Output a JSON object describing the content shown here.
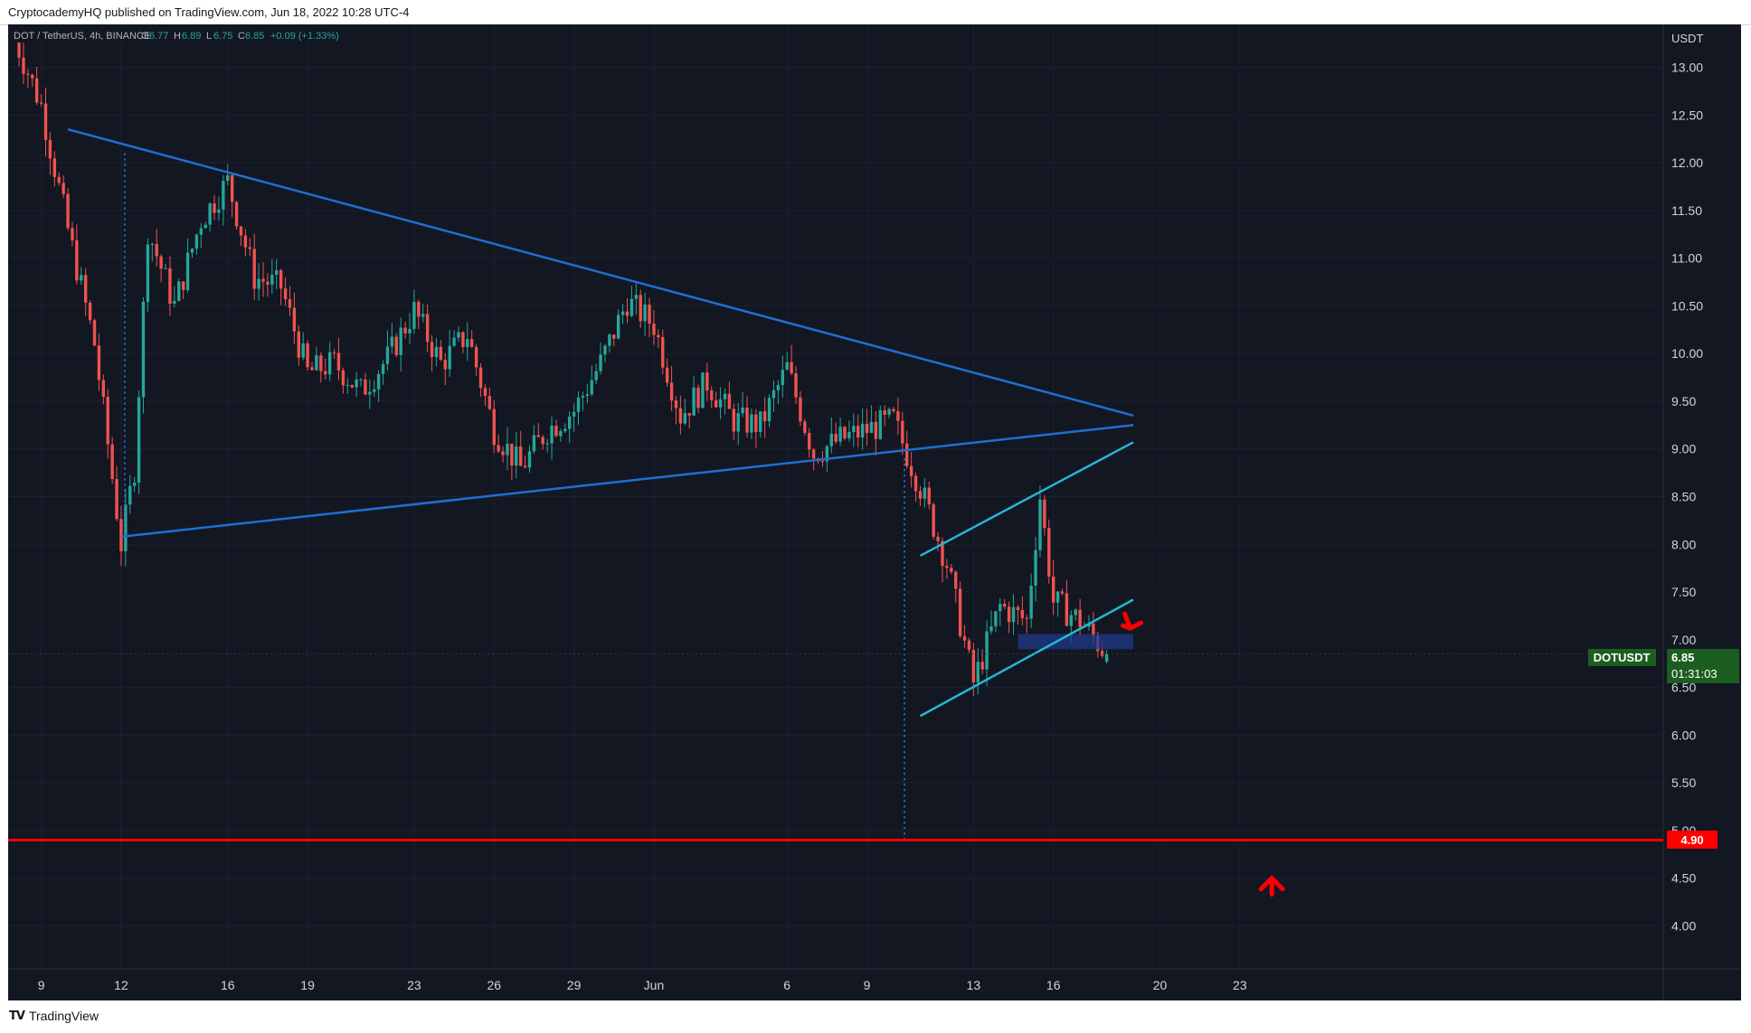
{
  "header": {
    "published": "CryptocademyHQ published on TradingView.com, Jun 18, 2022 10:28 UTC-4"
  },
  "legend": {
    "symbol": "DOT / TetherUS, 4h, BINANCE",
    "open_label": "O",
    "open": "6.77",
    "high_label": "H",
    "high": "6.89",
    "low_label": "L",
    "low": "6.75",
    "close_label": "C",
    "close": "6.85",
    "change": "+0.09 (+1.33%)"
  },
  "price_axis": {
    "currency": "USDT",
    "ticks": [
      "13.00",
      "12.50",
      "12.00",
      "11.50",
      "11.00",
      "10.50",
      "10.00",
      "9.50",
      "9.00",
      "8.50",
      "8.00",
      "7.50",
      "7.00",
      "6.50",
      "6.00",
      "5.50",
      "5.00",
      "4.50",
      "4.00"
    ]
  },
  "time_axis": {
    "ticks": [
      "9",
      "12",
      "16",
      "19",
      "23",
      "26",
      "29",
      "Jun",
      "6",
      "9",
      "13",
      "16",
      "20",
      "23"
    ]
  },
  "price_tag": {
    "symbol": "DOTUSDT",
    "price": "6.85",
    "countdown": "01:31:03"
  },
  "level_tag": {
    "price": "4.90"
  },
  "footer": {
    "brand": "TradingView"
  },
  "colors": {
    "background": "#131722",
    "up_candle": "#26a69a",
    "down_candle": "#ef5350",
    "triangle_lines": "#1e6fd0",
    "channel_lines": "#26b6d4",
    "support_line": "#ff0000",
    "box_fill": "#1e3a8a",
    "price_tag": "#1b5e20"
  },
  "chart_data": {
    "type": "candlestick",
    "symbol": "DOT / TetherUS",
    "interval": "4h",
    "exchange": "BINANCE",
    "ylim": [
      3.55,
      13.45
    ],
    "price_path": [
      {
        "date": "May 8",
        "price": 13.3
      },
      {
        "date": "May 9",
        "price": 12.6
      },
      {
        "date": "May 10",
        "price": 11.3
      },
      {
        "date": "May 11",
        "price": 10.1
      },
      {
        "date": "May 12",
        "price": 8.0
      },
      {
        "date": "May 12 12:00",
        "price": 8.8
      },
      {
        "date": "May 13",
        "price": 11.3
      },
      {
        "date": "May 14",
        "price": 10.5
      },
      {
        "date": "May 15",
        "price": 11.4
      },
      {
        "date": "May 16",
        "price": 11.8
      },
      {
        "date": "May 17",
        "price": 10.8
      },
      {
        "date": "May 18",
        "price": 10.7
      },
      {
        "date": "May 19",
        "price": 9.8
      },
      {
        "date": "May 20",
        "price": 9.9
      },
      {
        "date": "May 21",
        "price": 9.6
      },
      {
        "date": "May 22",
        "price": 9.95
      },
      {
        "date": "May 23",
        "price": 10.45
      },
      {
        "date": "May 24",
        "price": 9.9
      },
      {
        "date": "May 25",
        "price": 10.2
      },
      {
        "date": "May 26",
        "price": 9.2
      },
      {
        "date": "May 27",
        "price": 8.8
      },
      {
        "date": "May 28",
        "price": 9.2
      },
      {
        "date": "May 29",
        "price": 9.4
      },
      {
        "date": "May 30",
        "price": 9.9
      },
      {
        "date": "May 31",
        "price": 10.55
      },
      {
        "date": "Jun 1",
        "price": 10.3
      },
      {
        "date": "Jun 2",
        "price": 9.35
      },
      {
        "date": "Jun 3",
        "price": 9.7
      },
      {
        "date": "Jun 4",
        "price": 9.3
      },
      {
        "date": "Jun 5",
        "price": 9.25
      },
      {
        "date": "Jun 6",
        "price": 9.85
      },
      {
        "date": "Jun 7",
        "price": 8.95
      },
      {
        "date": "Jun 8",
        "price": 9.1
      },
      {
        "date": "Jun 9",
        "price": 9.2
      },
      {
        "date": "Jun 10",
        "price": 9.3
      },
      {
        "date": "Jun 11",
        "price": 8.6
      },
      {
        "date": "Jun 12",
        "price": 7.8
      },
      {
        "date": "Jun 13",
        "price": 6.55
      },
      {
        "date": "Jun 14",
        "price": 7.35
      },
      {
        "date": "Jun 15",
        "price": 7.2
      },
      {
        "date": "Jun 15 12:00",
        "price": 8.5
      },
      {
        "date": "Jun 16",
        "price": 7.4
      },
      {
        "date": "Jun 17",
        "price": 7.2
      },
      {
        "date": "Jun 18",
        "price": 6.85
      }
    ],
    "last_candle": {
      "open": 6.77,
      "high": 6.89,
      "low": 6.75,
      "close": 6.85
    },
    "drawings": {
      "descending_line": [
        {
          "date": "May 10",
          "price": 12.35
        },
        {
          "date": "Jun 19",
          "price": 9.35
        }
      ],
      "ascending_line": [
        {
          "date": "May 12",
          "price": 8.08
        },
        {
          "date": "Jun 19",
          "price": 9.25
        }
      ],
      "channel_upper": [
        {
          "date": "Jun 11",
          "price": 7.88
        },
        {
          "date": "Jun 19",
          "price": 9.07
        }
      ],
      "channel_lower": [
        {
          "date": "Jun 11",
          "price": 6.2
        },
        {
          "date": "Jun 19",
          "price": 7.42
        }
      ],
      "support_level": 4.9,
      "zone": [
        6.9,
        7.06
      ]
    }
  }
}
